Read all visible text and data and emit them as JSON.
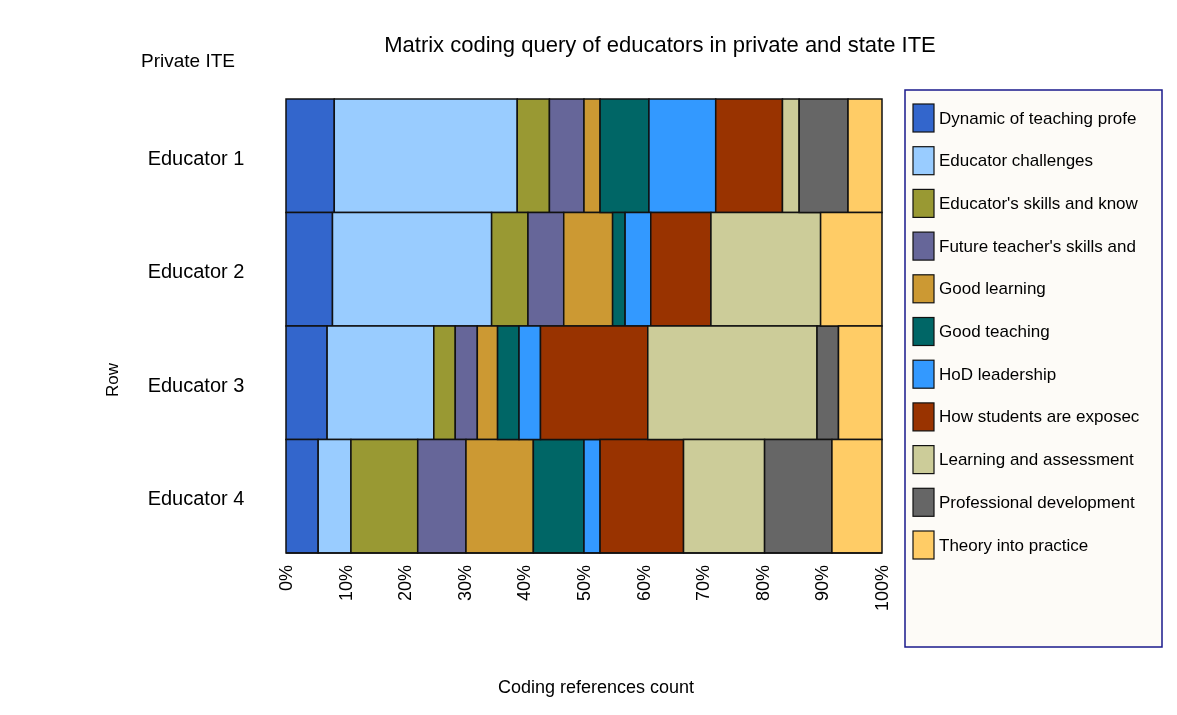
{
  "chart_data": {
    "type": "bar",
    "orientation": "horizontal",
    "stacked": true,
    "title": "Matrix coding query of educators in private and state ITE",
    "xlabel": "Coding references count",
    "ylabel": "Row",
    "annotations": [
      "Private ITE"
    ],
    "categories": [
      "Educator 1",
      "Educator 2",
      "Educator 3",
      "Educator 4"
    ],
    "xlim": [
      0,
      100
    ],
    "xticks": [
      {
        "value": 0,
        "label": "0%"
      },
      {
        "value": 10,
        "label": "10%"
      },
      {
        "value": 20,
        "label": "20%"
      },
      {
        "value": 30,
        "label": "30%"
      },
      {
        "value": 40,
        "label": "40%"
      },
      {
        "value": 50,
        "label": "50%"
      },
      {
        "value": 60,
        "label": "60%"
      },
      {
        "value": 70,
        "label": "70%"
      },
      {
        "value": 80,
        "label": "80%"
      },
      {
        "value": 90,
        "label": "90%"
      },
      {
        "value": 100,
        "label": "100%"
      }
    ],
    "legend": "right",
    "grid": false,
    "series": [
      {
        "name": "Dynamic of teaching profe",
        "color": "#3366cc",
        "values": [
          8.1,
          7.8,
          6.9,
          5.4
        ]
      },
      {
        "name": "Educator challenges",
        "color": "#99ccff",
        "values": [
          30.7,
          26.7,
          17.9,
          5.5
        ]
      },
      {
        "name": "Educator's skills and know",
        "color": "#999933",
        "values": [
          5.4,
          6.1,
          3.6,
          11.2
        ]
      },
      {
        "name": "Future teacher's skills and",
        "color": "#666699",
        "values": [
          5.8,
          6.0,
          3.7,
          8.1
        ]
      },
      {
        "name": "Good learning",
        "color": "#cc9933",
        "values": [
          2.7,
          8.2,
          3.4,
          11.3
        ]
      },
      {
        "name": "Good teaching",
        "color": "#006666",
        "values": [
          8.2,
          2.1,
          3.6,
          8.5
        ]
      },
      {
        "name": "HoD leadership",
        "color": "#3399ff",
        "values": [
          11.2,
          4.3,
          3.6,
          2.7
        ]
      },
      {
        "name": "How students are exposec",
        "color": "#993300",
        "values": [
          11.2,
          10.1,
          18.0,
          14.0
        ]
      },
      {
        "name": "Learning and assessment",
        "color": "#cccc99",
        "values": [
          2.8,
          18.4,
          28.4,
          13.6
        ]
      },
      {
        "name": "Professional development",
        "color": "#666666",
        "values": [
          8.2,
          0,
          3.6,
          11.3
        ]
      },
      {
        "name": "Theory into practice",
        "color": "#ffcc66",
        "values": [
          5.7,
          10.3,
          7.3,
          8.4
        ]
      }
    ]
  }
}
